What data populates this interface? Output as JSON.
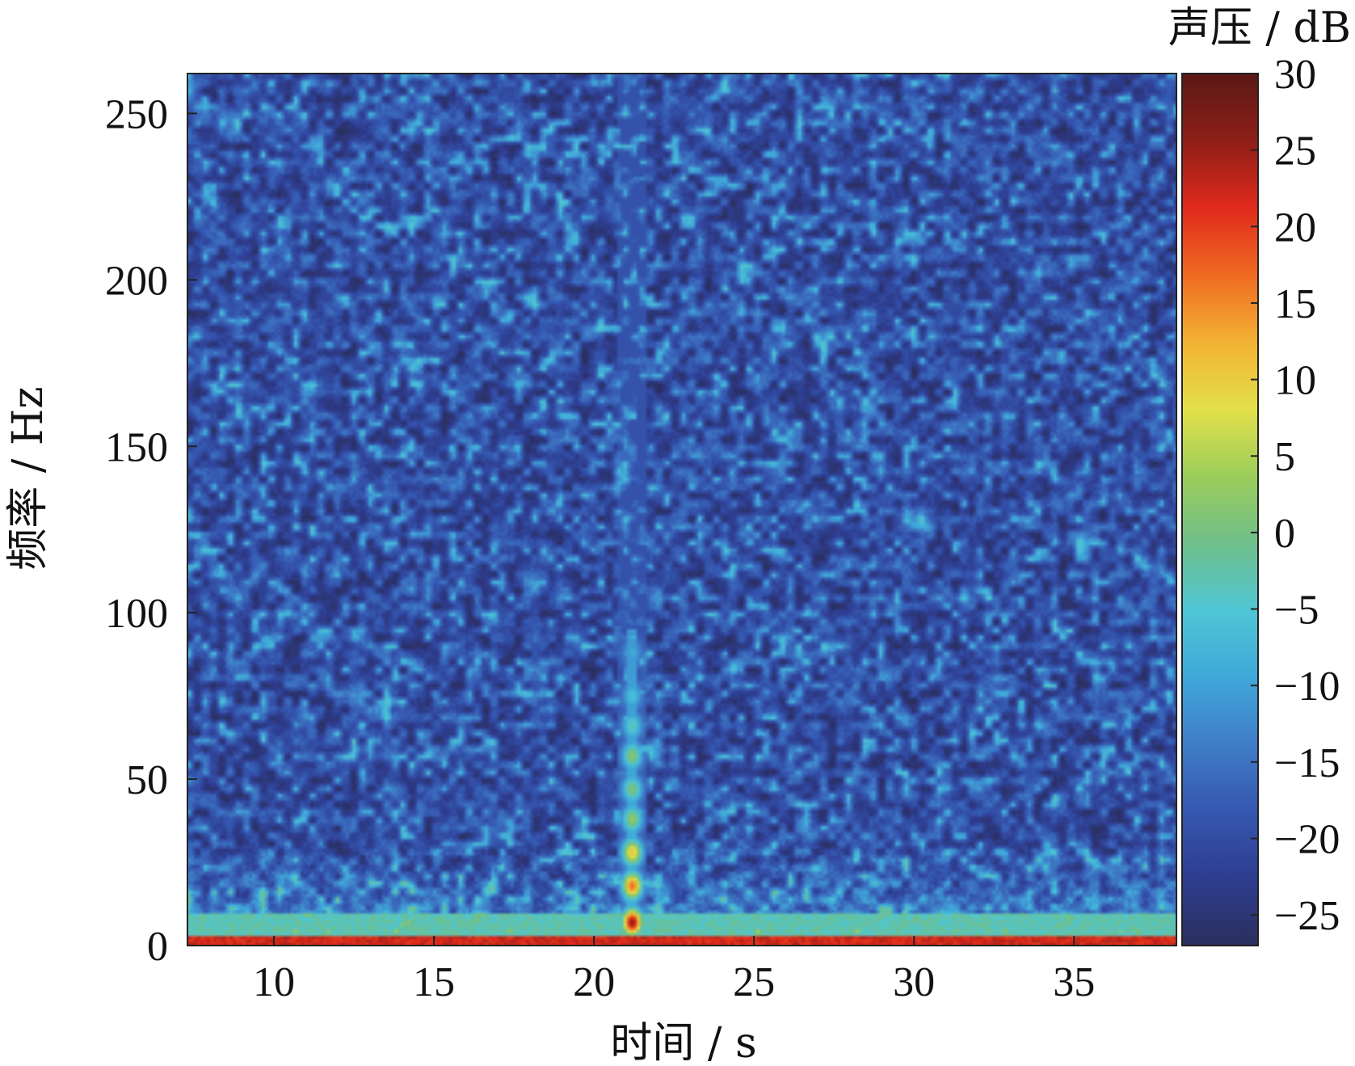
{
  "chart_data": {
    "type": "heatmap",
    "title": "",
    "xlabel": "时间 / s",
    "ylabel": "频率 / Hz",
    "xlim": [
      7.3,
      38.2
    ],
    "ylim": [
      0,
      262
    ],
    "xticks": [
      10,
      15,
      20,
      25,
      30,
      35
    ],
    "yticks": [
      0,
      50,
      100,
      150,
      200,
      250
    ],
    "colorbar": {
      "label": "声压 / dB",
      "range": [
        -27,
        30
      ],
      "ticks": [
        30,
        25,
        20,
        15,
        10,
        5,
        0,
        -5,
        -10,
        -15,
        -20,
        -25
      ],
      "tick_labels": [
        "30",
        "25",
        "20",
        "15",
        "10",
        "5",
        "0",
        "−5",
        "−10",
        "−15",
        "−20",
        "−25"
      ],
      "colormap": [
        "#2b2f5e",
        "#2e3d8f",
        "#3557b0",
        "#3f7cc7",
        "#3fa8d9",
        "#4fc6d4",
        "#6fbf8a",
        "#9ccd5a",
        "#e3e04a",
        "#f3b233",
        "#ef6a22",
        "#e02a1c",
        "#8e1e18",
        "#5a1a16"
      ]
    },
    "background_level_db": -19,
    "noise_floor_db": {
      "low_freq_below_10hz": -3,
      "lowest_band_0_3hz": 22
    },
    "transient_event": {
      "time_s": 21.2,
      "blobs": [
        {
          "freq_hz": 7,
          "level_db": 26
        },
        {
          "freq_hz": 18,
          "level_db": 17
        },
        {
          "freq_hz": 28,
          "level_db": 11
        },
        {
          "freq_hz": 38,
          "level_db": 3
        },
        {
          "freq_hz": 47,
          "level_db": 1
        },
        {
          "freq_hz": 57,
          "level_db": 2
        },
        {
          "freq_hz": 66,
          "level_db": -3
        },
        {
          "freq_hz": 75,
          "level_db": -6
        },
        {
          "freq_hz": 88,
          "level_db": -9
        }
      ]
    }
  }
}
